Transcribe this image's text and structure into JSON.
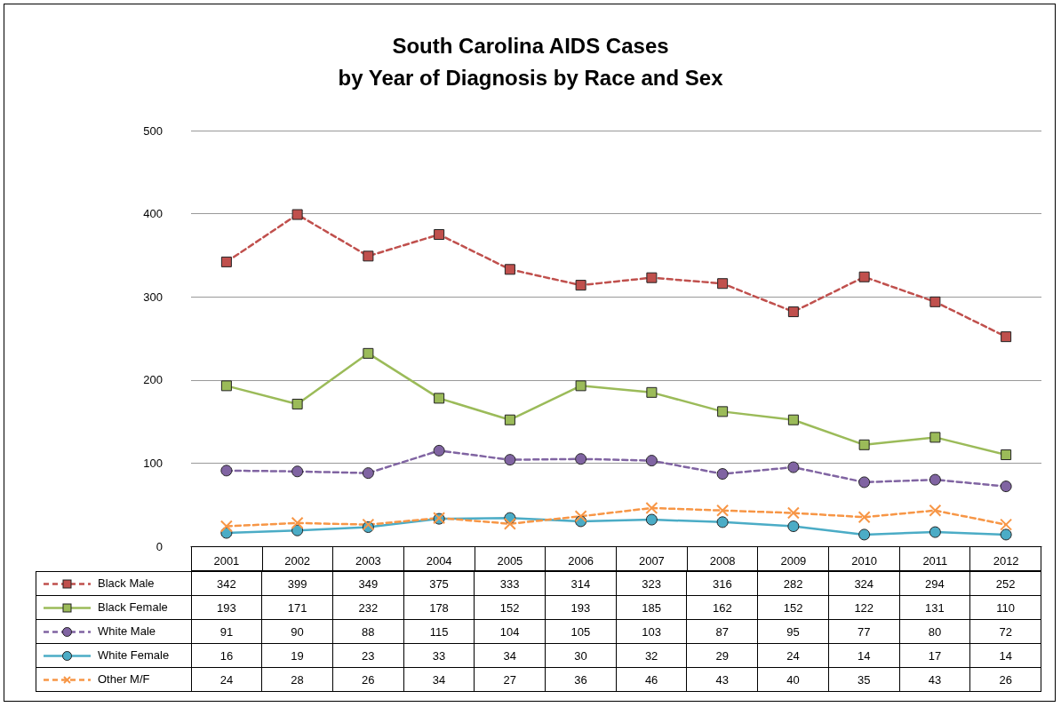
{
  "chart_data": {
    "type": "line",
    "title": "South Carolina AIDS Cases\nby Year of Diagnosis by Race and Sex",
    "categories": [
      "2001",
      "2002",
      "2003",
      "2004",
      "2005",
      "2006",
      "2007",
      "2008",
      "2009",
      "2010",
      "2011",
      "2012"
    ],
    "series": [
      {
        "name": "Black Male",
        "color": "#c0504d",
        "marker": "square",
        "line_style": "dashed",
        "values": [
          342,
          399,
          349,
          375,
          333,
          314,
          323,
          316,
          282,
          324,
          294,
          252
        ]
      },
      {
        "name": "Black Female",
        "color": "#9bbb59",
        "marker": "square",
        "line_style": "solid",
        "values": [
          193,
          171,
          232,
          178,
          152,
          193,
          185,
          162,
          152,
          122,
          131,
          110
        ]
      },
      {
        "name": "White Male",
        "color": "#8064a2",
        "marker": "circle",
        "line_style": "dashed",
        "values": [
          91,
          90,
          88,
          115,
          104,
          105,
          103,
          87,
          95,
          77,
          80,
          72
        ]
      },
      {
        "name": "White Female",
        "color": "#4bacc6",
        "marker": "circle",
        "line_style": "solid",
        "values": [
          16,
          19,
          23,
          33,
          34,
          30,
          32,
          29,
          24,
          14,
          17,
          14
        ]
      },
      {
        "name": "Other M/F",
        "color": "#f79646",
        "marker": "cross",
        "line_style": "dashed",
        "values": [
          24,
          28,
          26,
          34,
          27,
          36,
          46,
          43,
          40,
          35,
          43,
          26
        ]
      }
    ],
    "ylim": [
      0,
      500
    ],
    "yticks": [
      0,
      100,
      200,
      300,
      400,
      500
    ],
    "grid": "y",
    "legend": "bottom",
    "data_labels": true
  }
}
